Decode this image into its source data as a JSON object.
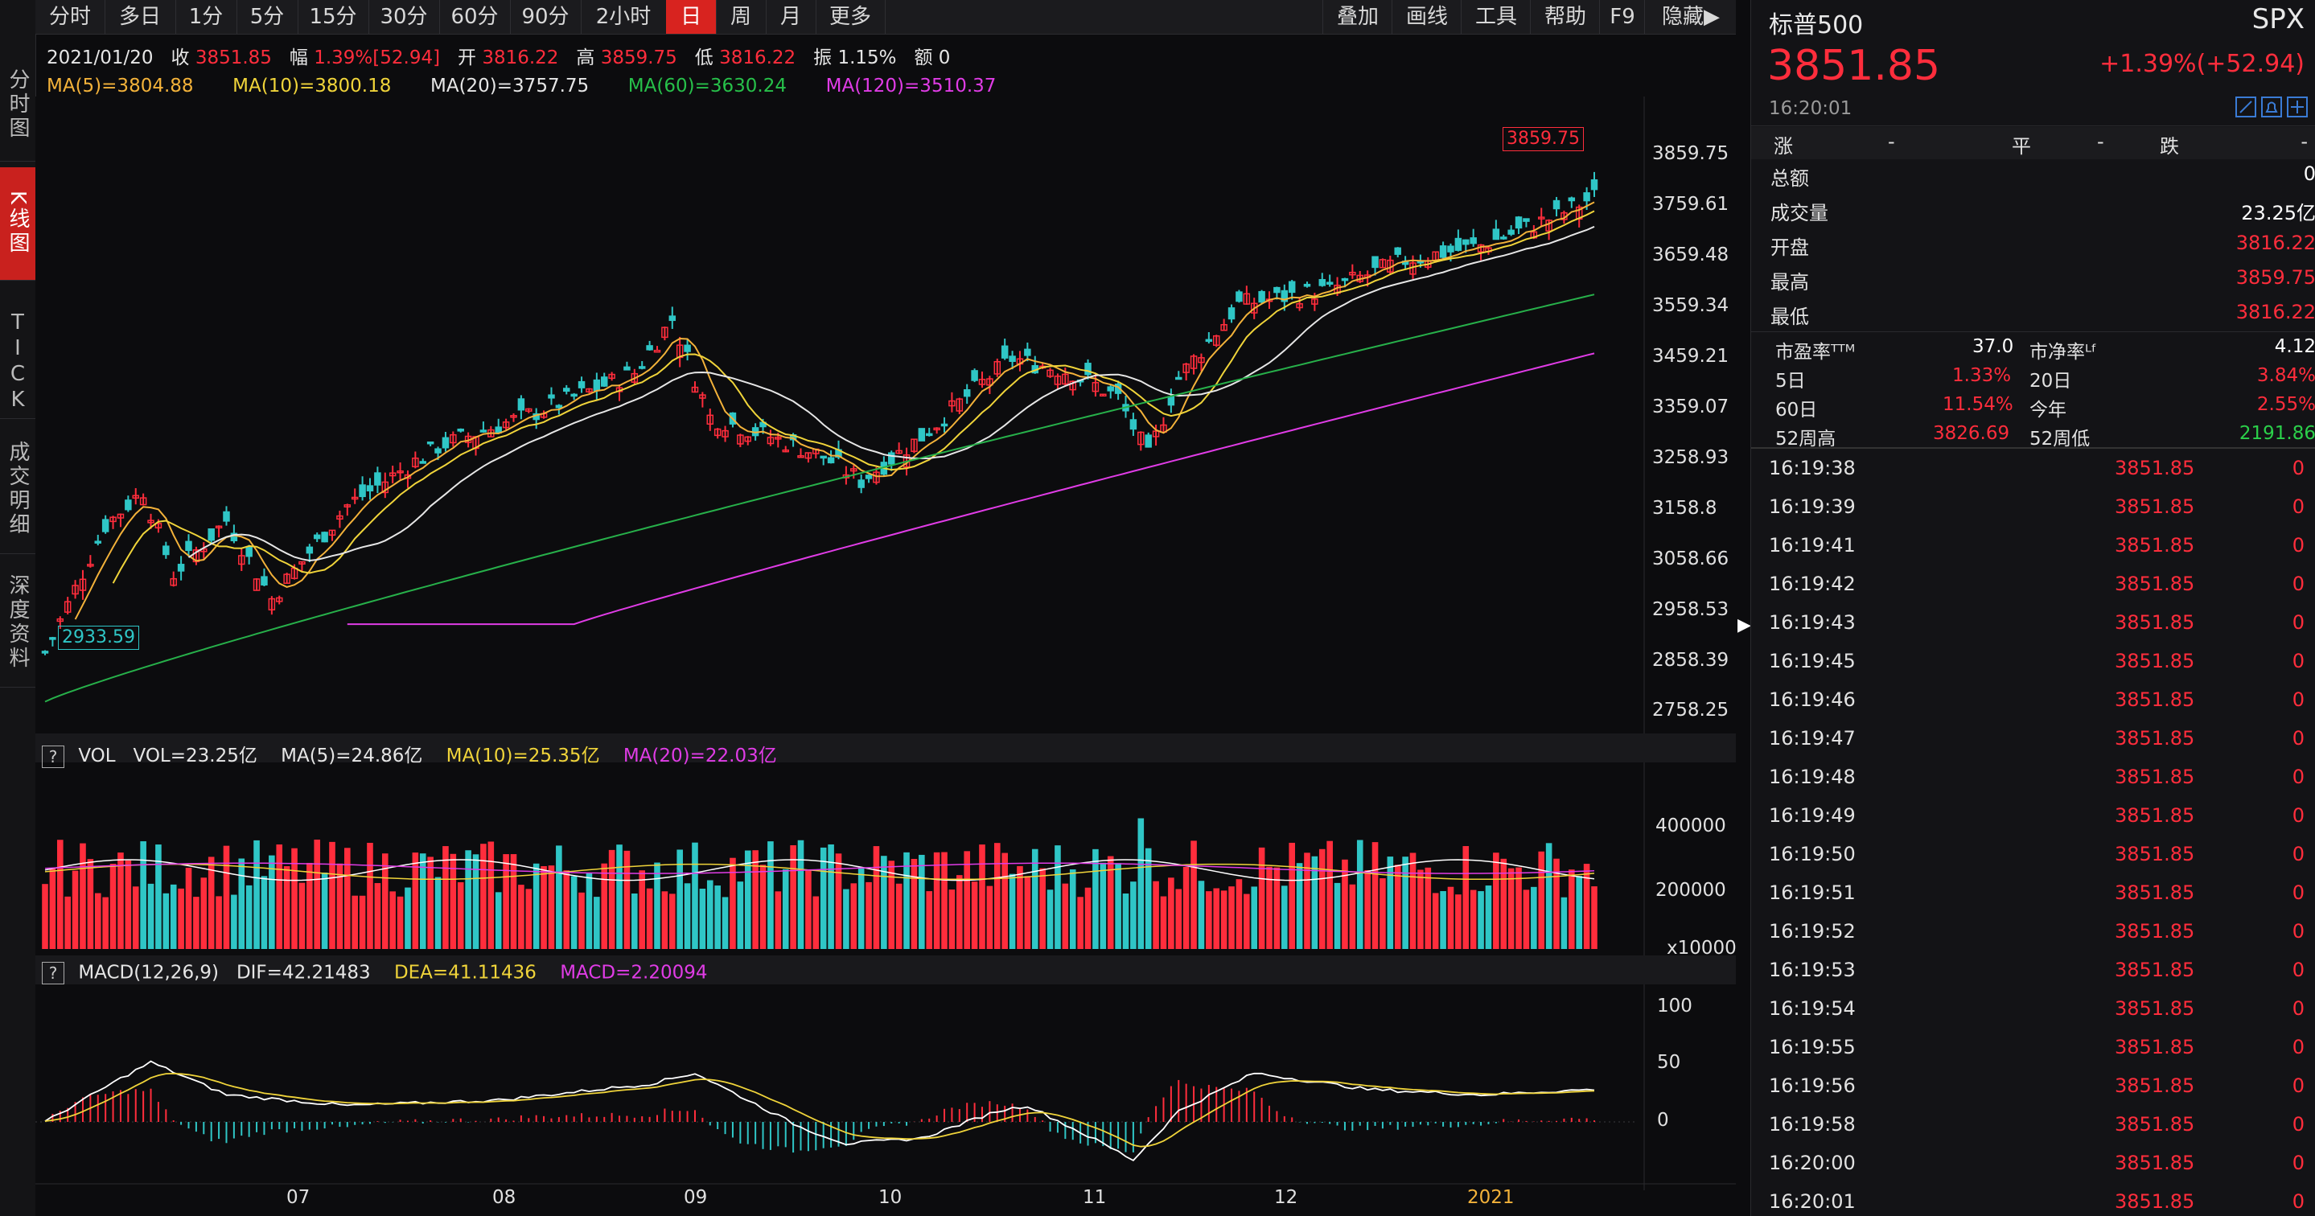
{
  "left_rail": [
    {
      "label": "分时图"
    },
    {
      "label": "K线图"
    },
    {
      "label": "TICK"
    },
    {
      "label": "成交明细"
    },
    {
      "label": "深度资料"
    }
  ],
  "tabs": [
    "分时",
    "多日",
    "1分",
    "5分",
    "15分",
    "30分",
    "60分",
    "90分",
    "2小时",
    "日",
    "周",
    "月",
    "更多"
  ],
  "active_tab": "日",
  "tools": [
    "叠加",
    "画线",
    "工具",
    "帮助",
    "F9",
    "隐藏▶"
  ],
  "info": {
    "date": "2021/01/20",
    "close_label": "收",
    "close": "3851.85",
    "change_label": "幅",
    "change": "1.39%[52.94]",
    "open_label": "开",
    "open": "3816.22",
    "high_label": "高",
    "high": "3859.75",
    "low_label": "低",
    "low": "3816.22",
    "amp_label": "振",
    "amp": "1.15%",
    "amt_label": "额",
    "amt": "0"
  },
  "ma": {
    "ma5": "MA(5)=3804.88",
    "ma10": "MA(10)=3800.18",
    "ma20": "MA(20)=3757.75",
    "ma60": "MA(60)=3630.24",
    "ma120": "MA(120)=3510.37"
  },
  "price_axis": [
    "3859.75",
    "3759.61",
    "3659.48",
    "3559.34",
    "3459.21",
    "3359.07",
    "3258.93",
    "3158.8",
    "3058.66",
    "2958.53",
    "2858.39",
    "2758.25"
  ],
  "price_high_tag": "3859.75",
  "price_low_tag": "2933.59",
  "vol_head": {
    "q": "?",
    "title": "VOL",
    "vol": "VOL=23.25亿",
    "ma5": "MA(5)=24.86亿",
    "ma10": "MA(10)=25.35亿",
    "ma20": "MA(20)=22.03亿"
  },
  "vol_axis": [
    "400000",
    "200000",
    "x10000"
  ],
  "macd_head": {
    "q": "?",
    "title": "MACD(12,26,9)",
    "dif": "DIF=42.21483",
    "dea": "DEA=41.11436",
    "macd": "MACD=2.20094"
  },
  "macd_axis": [
    "100",
    "50",
    "0"
  ],
  "x_axis": [
    "07",
    "08",
    "09",
    "10",
    "11",
    "12",
    "2021"
  ],
  "quote": {
    "name": "标普500",
    "code": "SPX",
    "price": "3851.85",
    "change": "+1.39%(+52.94)",
    "time": "16:20:01",
    "breadth": {
      "up_label": "涨",
      "up": "-",
      "flat_label": "平",
      "flat": "-",
      "down_label": "跌",
      "down": "-"
    },
    "stats": [
      {
        "k": "总额",
        "v": "0"
      },
      {
        "k": "成交量",
        "v": "23.25亿"
      },
      {
        "k": "开盘",
        "v": "3816.22"
      },
      {
        "k": "最高",
        "v": "3859.75"
      },
      {
        "k": "最低",
        "v": "3816.22"
      }
    ],
    "ratios": {
      "pe_label": "市盈率ᵀᵀᴹ",
      "pe": "37.0",
      "pb_label": "市净率ᴸᶠ",
      "pb": "4.12",
      "d5_label": "5日",
      "d5": "1.33%",
      "d20_label": "20日",
      "d20": "3.84%",
      "d60_label": "60日",
      "d60": "11.54%",
      "ytd_label": "今年",
      "ytd": "2.55%",
      "w52h_label": "52周高",
      "w52h": "3826.69",
      "w52l_label": "52周低",
      "w52l": "2191.86"
    },
    "ticks": [
      {
        "t": "16:19:38",
        "p": "3851.85",
        "v": "0"
      },
      {
        "t": "16:19:39",
        "p": "3851.85",
        "v": "0"
      },
      {
        "t": "16:19:41",
        "p": "3851.85",
        "v": "0"
      },
      {
        "t": "16:19:42",
        "p": "3851.85",
        "v": "0"
      },
      {
        "t": "16:19:43",
        "p": "3851.85",
        "v": "0"
      },
      {
        "t": "16:19:45",
        "p": "3851.85",
        "v": "0"
      },
      {
        "t": "16:19:46",
        "p": "3851.85",
        "v": "0"
      },
      {
        "t": "16:19:47",
        "p": "3851.85",
        "v": "0"
      },
      {
        "t": "16:19:48",
        "p": "3851.85",
        "v": "0"
      },
      {
        "t": "16:19:49",
        "p": "3851.85",
        "v": "0"
      },
      {
        "t": "16:19:50",
        "p": "3851.85",
        "v": "0"
      },
      {
        "t": "16:19:51",
        "p": "3851.85",
        "v": "0"
      },
      {
        "t": "16:19:52",
        "p": "3851.85",
        "v": "0"
      },
      {
        "t": "16:19:53",
        "p": "3851.85",
        "v": "0"
      },
      {
        "t": "16:19:54",
        "p": "3851.85",
        "v": "0"
      },
      {
        "t": "16:19:55",
        "p": "3851.85",
        "v": "0"
      },
      {
        "t": "16:19:56",
        "p": "3851.85",
        "v": "0"
      },
      {
        "t": "16:19:58",
        "p": "3851.85",
        "v": "0"
      },
      {
        "t": "16:20:00",
        "p": "3851.85",
        "v": "0"
      },
      {
        "t": "16:20:01",
        "p": "3851.85",
        "v": "0"
      }
    ]
  },
  "icons": [
    "edit-icon",
    "bell-icon",
    "add-icon",
    "expand-arrow-icon"
  ],
  "colors": {
    "up": "#ff2d3c",
    "down": "#2fc6c6",
    "ma5": "#ffffff",
    "ma10": "#f0d43a",
    "ma20": "#e6e6e6",
    "ma60": "#27b04a",
    "ma120": "#e03ce6"
  }
}
